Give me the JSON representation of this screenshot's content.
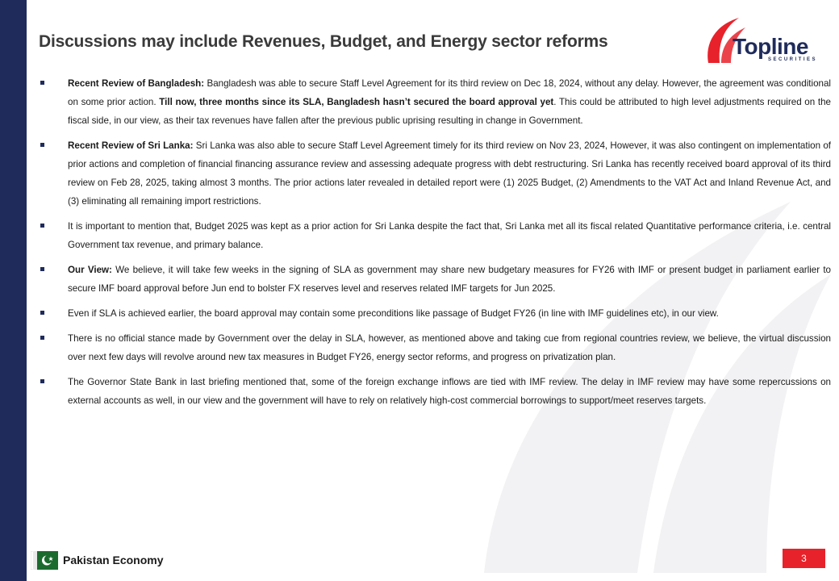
{
  "slide": {
    "title": "Discussions may include Revenues, Budget, and Energy sector reforms",
    "page_number": "3"
  },
  "brand": {
    "name": "Topline",
    "subtitle": "SECURITIES",
    "primary_color": "#1f2b5b",
    "accent_color": "#e8222a"
  },
  "footer": {
    "label": "Pakistan Economy",
    "flag_icon": "pakistan-flag-icon"
  },
  "bullets": [
    {
      "lead": "Recent Review of Bangladesh:",
      "text1": " Bangladesh was able to secure Staff Level Agreement for its third review on Dec 18, 2024, without any delay. However, the agreement was conditional on some prior action. ",
      "bold2": "Till now, three months since its SLA, Bangladesh hasn’t secured the board approval yet",
      "text2": ". This could be attributed to high level adjustments required on the fiscal side, in our view, as their tax revenues have fallen after the previous public uprising resulting in change in Government."
    },
    {
      "lead": "Recent Review of Sri Lanka:",
      "text1": " Sri Lanka was also able to secure Staff Level Agreement timely for its third review on Nov 23, 2024, However, it was also contingent on implementation of prior actions and completion of financial financing assurance review and assessing adequate progress with debt restructuring. Sri Lanka has recently received board approval of its third review on Feb 28, 2025, taking almost 3 months. The prior actions later revealed in detailed report were (1) 2025 Budget, (2) Amendments to the VAT Act and Inland Revenue Act, and (3) eliminating all remaining import restrictions."
    },
    {
      "text1": "It is important to mention that, Budget 2025 was kept as a prior action for Sri Lanka despite the fact that, Sri Lanka met all its fiscal related Quantitative performance criteria, i.e. central Government tax revenue, and primary balance."
    },
    {
      "lead": "Our View:",
      "text1": " We believe, it will take few weeks in the signing of SLA as government may share new budgetary measures for FY26 with IMF or present budget in parliament earlier to secure IMF board approval before Jun end to bolster FX reserves level and reserves related IMF targets for Jun 2025."
    },
    {
      "text1": "Even if SLA is achieved earlier, the board approval may contain some preconditions like passage of Budget FY26 (in line with IMF guidelines etc), in our view."
    },
    {
      "text1": "There is no official stance made by Government over the delay in SLA, however, as mentioned above and taking cue from regional countries review, we believe, the virtual discussion over next few days will revolve around new tax measures in Budget FY26, energy sector reforms, and progress on privatization plan."
    },
    {
      "text1": "The Governor State Bank in last briefing mentioned that, some of the foreign exchange inflows are tied with IMF review. The delay in IMF review may have some repercussions on external accounts as well, in our view and the government will have to rely on relatively high-cost commercial borrowings to support/meet reserves targets."
    }
  ]
}
